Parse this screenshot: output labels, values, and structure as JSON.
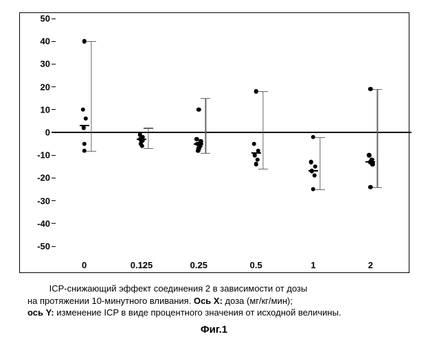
{
  "chart": {
    "type": "scatter-with-errorbars",
    "ylim": [
      -50,
      50
    ],
    "ytick_step": 10,
    "point_radius": 3.2,
    "point_color": "#000000",
    "mean_tick_width": 14,
    "errorbar_color": "#666666",
    "errorcap_width": 14,
    "background_color": "#ffffff",
    "border_color": "#000000",
    "zero_line_width": 2,
    "categories": [
      "0",
      "0.125",
      "0.25",
      "0.5",
      "1",
      "2"
    ],
    "series": [
      {
        "x": "0",
        "mean": 3,
        "err_lo": -8,
        "err_hi": 40,
        "points": [
          40,
          10,
          6,
          2,
          -5,
          -8
        ]
      },
      {
        "x": "0.125",
        "mean": -3,
        "err_lo": -7,
        "err_hi": 2,
        "points": [
          -1,
          -2,
          -3,
          -3.5,
          -4,
          -5,
          -6
        ]
      },
      {
        "x": "0.25",
        "mean": -5,
        "err_lo": -9,
        "err_hi": 15,
        "points": [
          10,
          -3,
          -4,
          -5,
          -6,
          -7,
          -8
        ]
      },
      {
        "x": "0.5",
        "mean": -9,
        "err_lo": -16,
        "err_hi": 18,
        "points": [
          18,
          -5,
          -8,
          -10,
          -12,
          -14
        ]
      },
      {
        "x": "1",
        "mean": -17,
        "err_lo": -25,
        "err_hi": -2,
        "points": [
          -2,
          -13,
          -15,
          -17,
          -19,
          -25
        ]
      },
      {
        "x": "2",
        "mean": -13,
        "err_lo": -24,
        "err_hi": 19,
        "points": [
          19,
          -10,
          -12,
          -13,
          -14,
          -24
        ]
      }
    ],
    "jitter": [
      [
        0,
        -2,
        2,
        -1,
        0,
        0
      ],
      [
        -2,
        2,
        -2,
        2,
        0,
        -1,
        1
      ],
      [
        0,
        -3,
        3,
        -2,
        2,
        0,
        -1
      ],
      [
        0,
        -3,
        3,
        -2,
        2,
        0
      ],
      [
        0,
        -3,
        3,
        -2,
        2,
        0
      ],
      [
        0,
        -2,
        2,
        0,
        3,
        0
      ]
    ]
  },
  "caption": {
    "line1_a": "ICP-снижающий эффект соединения 2 в зависимости от дозы",
    "line2_a": "на протяжении 10-минутного вливания. ",
    "line2_b_label": "Ось X:",
    "line2_b_text": " доза (мг/кг/мин);",
    "line3_a_label": "ось Y:",
    "line3_a_text": " изменение ICP в виде процентного значения от исходной величины."
  },
  "figure_label": "Фиг.1"
}
